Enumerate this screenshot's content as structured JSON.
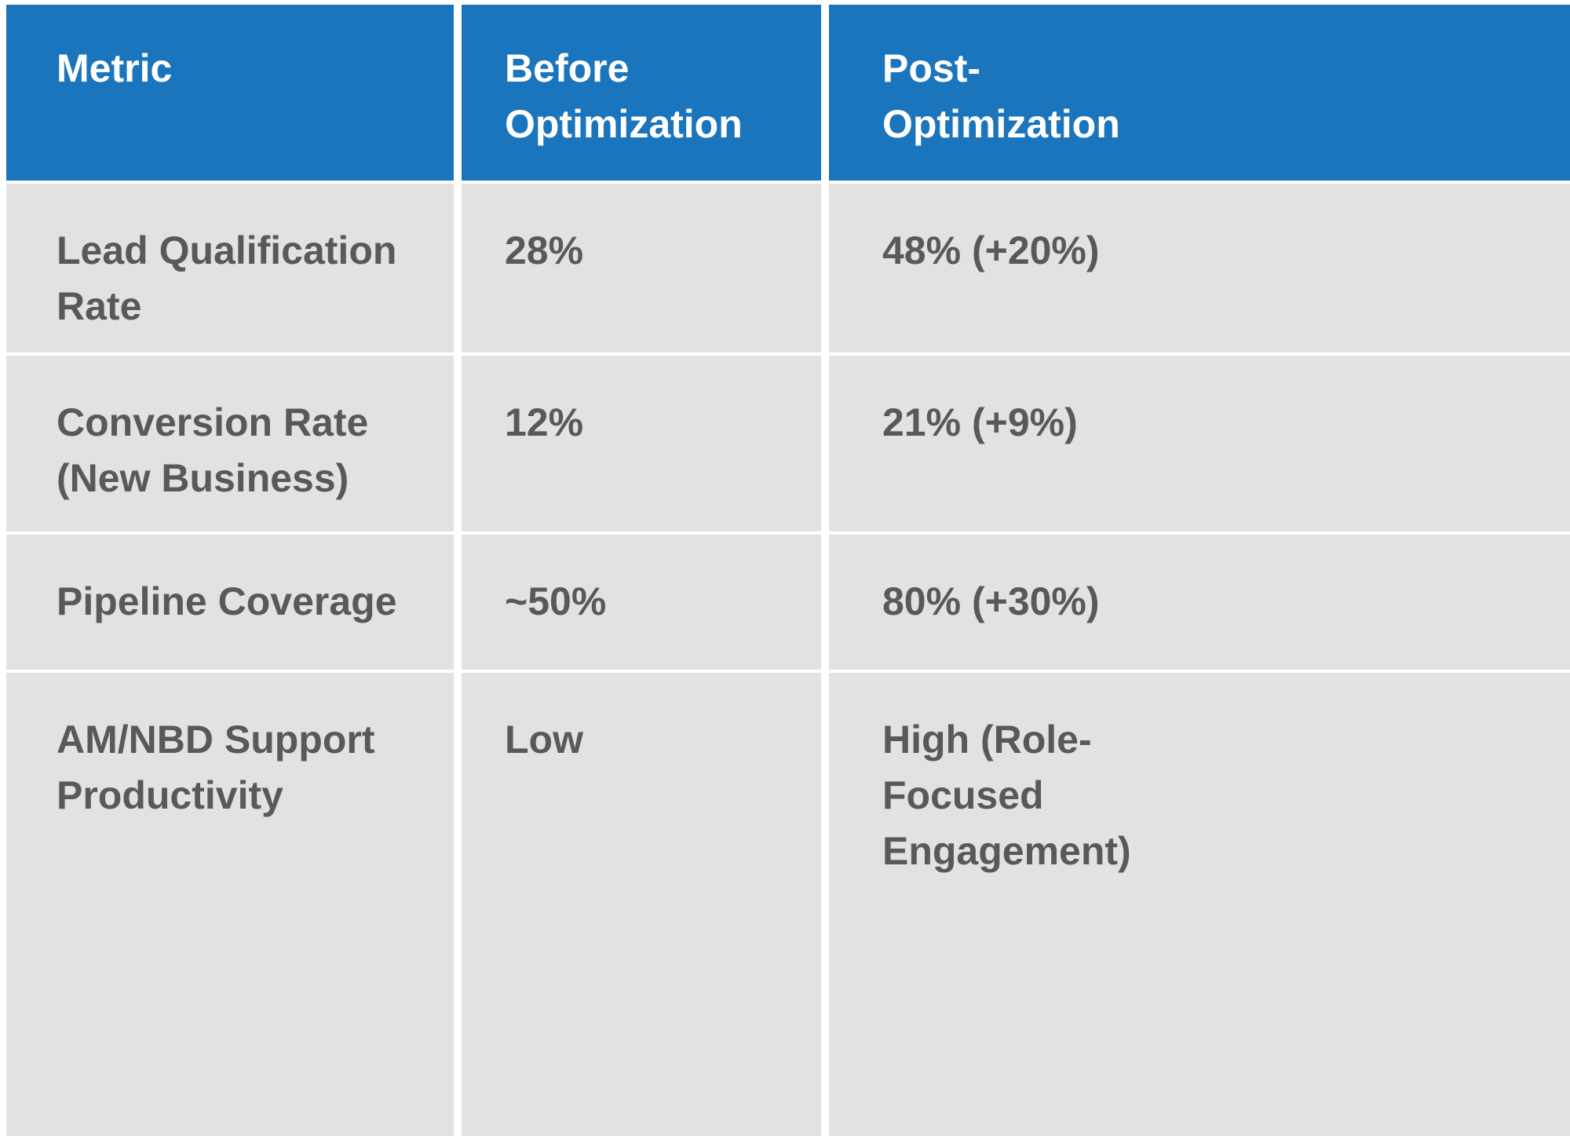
{
  "colors": {
    "header_bg": "#1b75bc",
    "header_text": "#ffffff",
    "body_bg": "#e2e2e2",
    "body_text": "#58595b",
    "separator": "#ffffff"
  },
  "chart_data": {
    "type": "table",
    "columns": [
      "Metric",
      "Before Optimization",
      "Post-Optimization"
    ],
    "rows": [
      [
        "Lead Qualification Rate",
        "28%",
        "48% (+20%)"
      ],
      [
        "Conversion Rate (New Business)",
        "12%",
        "21% (+9%)"
      ],
      [
        "Pipeline Coverage",
        "~50%",
        "80% (+30%)"
      ],
      [
        "AM/NBD Support Productivity",
        "Low",
        "High (Role-Focused Engagement)"
      ]
    ],
    "title": "",
    "legend": "none",
    "grid": "white separators between cells"
  }
}
